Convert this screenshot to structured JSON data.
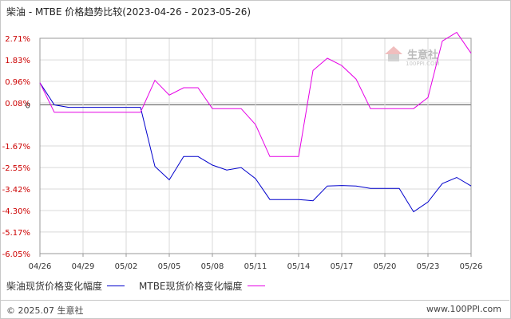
{
  "title": "柴油 - MTBE 价格趋势比较(2023-04-26 - 2023-05-26)",
  "watermark": {
    "name": "生意社",
    "url": "100PPI.COM"
  },
  "footer": {
    "copyright": "© 2025.07 生意社",
    "site": "www.100PPI.com"
  },
  "colors": {
    "series1": "#0000cc",
    "series2": "#e600e6",
    "grid": "#d9d9d9",
    "axis": "#999999",
    "label": "#cc0000",
    "zero": "#555555"
  },
  "chart_data": {
    "type": "line",
    "title": "柴油 - MTBE 价格趋势比较(2023-04-26 - 2023-05-26)",
    "xlabel": "",
    "ylabel": "",
    "y_unit": "%",
    "ylim": [
      -6.05,
      2.71
    ],
    "y_ticks": [
      2.71,
      1.83,
      0.96,
      0.08,
      0,
      -1.67,
      -2.55,
      -3.42,
      -4.3,
      -5.17,
      -6.05
    ],
    "y_tick_labels": [
      "2.71%",
      "1.83%",
      "0.96%",
      "0.08%",
      "0",
      "-1.67%",
      "-2.55%",
      "-3.42%",
      "-4.30%",
      "-5.17%",
      "-6.05%"
    ],
    "x_ticks": [
      "04/26",
      "04/29",
      "05/02",
      "05/05",
      "05/08",
      "05/11",
      "05/14",
      "05/17",
      "05/20",
      "05/23",
      "05/26"
    ],
    "grid": true,
    "legend_position": "bottom-left",
    "x_range": [
      "2023-04-26",
      "2023-05-26"
    ],
    "series": [
      {
        "name": "柴油现货价格变化幅度",
        "color": "#0000cc",
        "points": [
          [
            "2023-04-26",
            0.9
          ],
          [
            "2023-04-27",
            0.0
          ],
          [
            "2023-04-28",
            -0.1
          ],
          [
            "2023-05-03",
            -0.1
          ],
          [
            "2023-05-04",
            -2.5
          ],
          [
            "2023-05-05",
            -3.05
          ],
          [
            "2023-05-06",
            -2.1
          ],
          [
            "2023-05-07",
            -2.1
          ],
          [
            "2023-05-08",
            -2.45
          ],
          [
            "2023-05-09",
            -2.65
          ],
          [
            "2023-05-10",
            -2.55
          ],
          [
            "2023-05-11",
            -3.0
          ],
          [
            "2023-05-12",
            -3.85
          ],
          [
            "2023-05-13",
            -3.85
          ],
          [
            "2023-05-14",
            -3.85
          ],
          [
            "2023-05-15",
            -3.9
          ],
          [
            "2023-05-16",
            -3.3
          ],
          [
            "2023-05-17",
            -3.28
          ],
          [
            "2023-05-18",
            -3.3
          ],
          [
            "2023-05-19",
            -3.4
          ],
          [
            "2023-05-21",
            -3.4
          ],
          [
            "2023-05-22",
            -4.35
          ],
          [
            "2023-05-23",
            -3.95
          ],
          [
            "2023-05-24",
            -3.2
          ],
          [
            "2023-05-25",
            -2.95
          ],
          [
            "2023-05-26",
            -3.3
          ]
        ]
      },
      {
        "name": "MTBE现货价格变化幅度",
        "color": "#e600e6",
        "points": [
          [
            "2023-04-26",
            0.9
          ],
          [
            "2023-04-27",
            -0.3
          ],
          [
            "2023-04-28",
            -0.3
          ],
          [
            "2023-05-03",
            -0.3
          ],
          [
            "2023-05-04",
            1.0
          ],
          [
            "2023-05-05",
            0.4
          ],
          [
            "2023-05-06",
            0.7
          ],
          [
            "2023-05-07",
            0.7
          ],
          [
            "2023-05-08",
            -0.15
          ],
          [
            "2023-05-10",
            -0.15
          ],
          [
            "2023-05-11",
            -0.8
          ],
          [
            "2023-05-12",
            -2.1
          ],
          [
            "2023-05-14",
            -2.1
          ],
          [
            "2023-05-15",
            1.4
          ],
          [
            "2023-05-16",
            1.9
          ],
          [
            "2023-05-17",
            1.6
          ],
          [
            "2023-05-18",
            1.05
          ],
          [
            "2023-05-19",
            -0.15
          ],
          [
            "2023-05-22",
            -0.15
          ],
          [
            "2023-05-23",
            0.3
          ],
          [
            "2023-05-24",
            2.6
          ],
          [
            "2023-05-25",
            2.95
          ],
          [
            "2023-05-26",
            2.1
          ]
        ]
      }
    ]
  }
}
